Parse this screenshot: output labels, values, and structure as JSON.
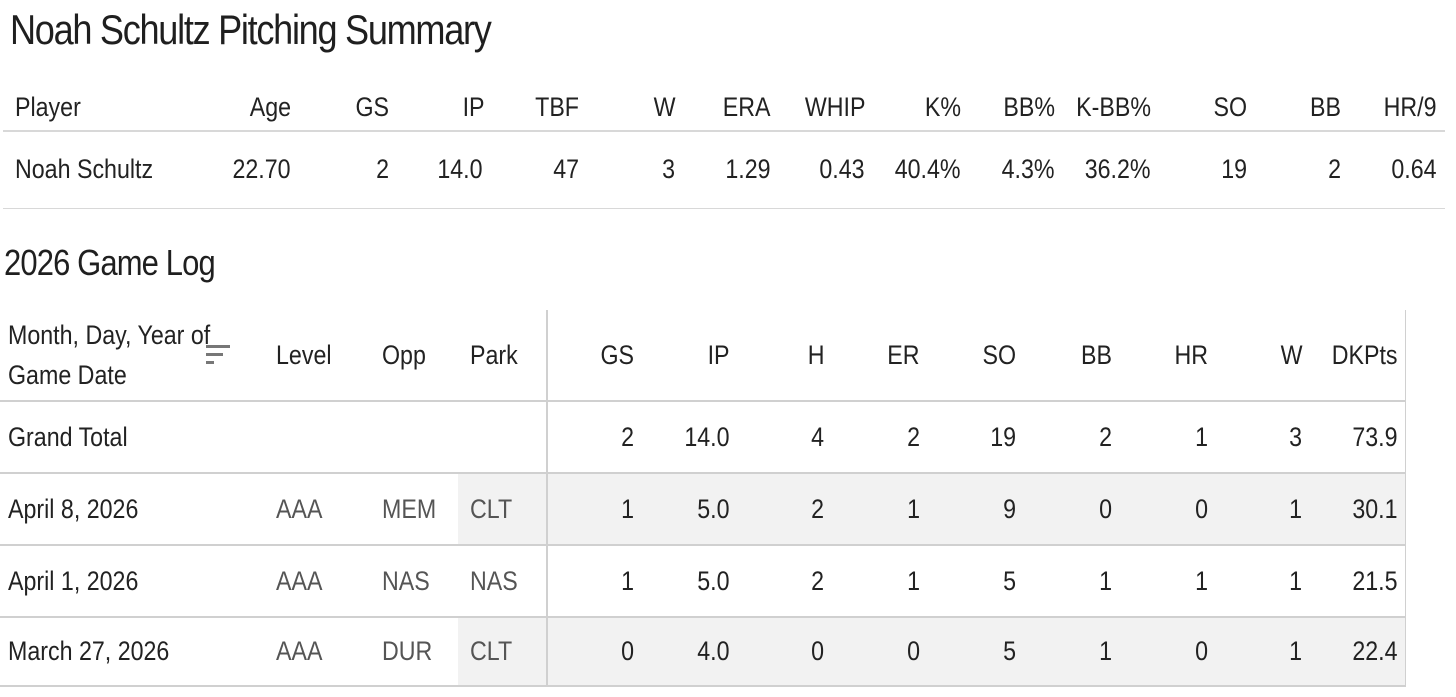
{
  "title": "Noah Schultz Pitching Summary",
  "summary": {
    "headers": [
      "Player",
      "Age",
      "GS",
      "IP",
      "TBF",
      "W",
      "ERA",
      "WHIP",
      "K%",
      "BB%",
      "K-BB%",
      "SO",
      "BB",
      "HR/9"
    ],
    "row": [
      "Noah Schultz",
      "22.70",
      "2",
      "14.0",
      "47",
      "3",
      "1.29",
      "0.43",
      "40.4%",
      "4.3%",
      "36.2%",
      "19",
      "2",
      "0.64"
    ]
  },
  "game_log": {
    "title": "2026 Game Log",
    "date_header_line1": "Month, Day, Year of",
    "date_header_line2": "Game Date",
    "sort_icon": "sort-icon",
    "headers": [
      "Level",
      "Opp",
      "Park",
      "GS",
      "IP",
      "H",
      "ER",
      "SO",
      "BB",
      "HR",
      "W",
      "DKPts"
    ],
    "grand_total": {
      "label": "Grand Total",
      "values": [
        "2",
        "14.0",
        "4",
        "2",
        "19",
        "2",
        "1",
        "3",
        "73.9"
      ]
    },
    "rows": [
      {
        "date": "April 8, 2026",
        "level": "AAA",
        "opp": "MEM",
        "park": "CLT",
        "values": [
          "1",
          "5.0",
          "2",
          "1",
          "9",
          "0",
          "0",
          "1",
          "30.1"
        ]
      },
      {
        "date": "April 1, 2026",
        "level": "AAA",
        "opp": "NAS",
        "park": "NAS",
        "values": [
          "1",
          "5.0",
          "2",
          "1",
          "5",
          "1",
          "1",
          "1",
          "21.5"
        ]
      },
      {
        "date": "March 27, 2026",
        "level": "AAA",
        "opp": "DUR",
        "park": "CLT",
        "values": [
          "0",
          "4.0",
          "0",
          "0",
          "5",
          "1",
          "0",
          "1",
          "22.4"
        ]
      }
    ]
  }
}
